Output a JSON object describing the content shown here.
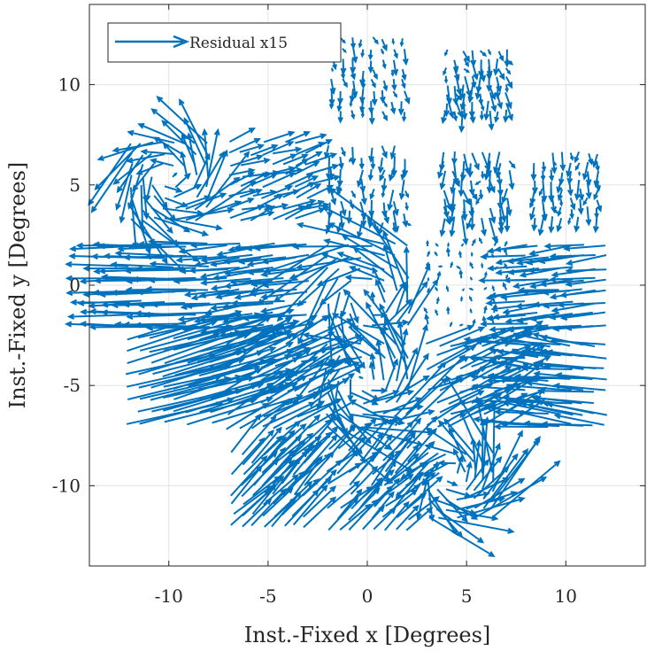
{
  "chart_data": {
    "type": "quiver",
    "xlabel": "Inst.-Fixed x [Degrees]",
    "ylabel": "Inst.-Fixed y [Degrees]",
    "xlim": [
      -14,
      14
    ],
    "ylim": [
      -14,
      14
    ],
    "xticks": [
      -10,
      -5,
      0,
      5,
      10
    ],
    "yticks": [
      -10,
      -5,
      0,
      5,
      10
    ],
    "xtick_labels": [
      "-10",
      "-5",
      "0",
      "5",
      "10"
    ],
    "ytick_labels": [
      "-10",
      "-5",
      "0",
      "5",
      "10"
    ],
    "grid": true,
    "legend": {
      "label": "Residual x15",
      "placement": "top-left"
    },
    "arrow_scale": 15,
    "series_color": "#0072BD",
    "tiles": [
      {
        "cx": -10,
        "cy": 5.2,
        "span": 3.8,
        "pattern": "swirl",
        "u": 0.01,
        "v": -0.005,
        "mag": 0.05
      },
      {
        "cx": -5,
        "cy": 5.2,
        "span": 3.8,
        "pattern": "uniform",
        "u": 0.09,
        "v": 0.03,
        "mag": 0.04
      },
      {
        "cx": 0,
        "cy": 5.0,
        "span": 3.8,
        "pattern": "vertical",
        "u": 0.0,
        "v": -0.04,
        "mag": 0.03
      },
      {
        "cx": 5.5,
        "cy": 5.0,
        "span": 3.2,
        "pattern": "vertical",
        "u": 0.005,
        "v": -0.05,
        "mag": 0.04
      },
      {
        "cx": 10,
        "cy": 5.0,
        "span": 3.2,
        "pattern": "vertical",
        "u": 0.0,
        "v": -0.04,
        "mag": 0.025
      },
      {
        "cx": 0,
        "cy": 10.5,
        "span": 3.6,
        "pattern": "vertical",
        "u": 0.005,
        "v": -0.03,
        "mag": 0.02
      },
      {
        "cx": 5.5,
        "cy": 10.2,
        "span": 3.0,
        "pattern": "vertical",
        "u": 0.005,
        "v": -0.04,
        "mag": 0.03
      },
      {
        "cx": -10,
        "cy": 0.0,
        "span": 4.0,
        "pattern": "uniform",
        "u": -0.2,
        "v": 0.0,
        "mag": 0.02
      },
      {
        "cx": -5,
        "cy": 0.0,
        "span": 4.0,
        "pattern": "uniform",
        "u": -0.16,
        "v": -0.02,
        "mag": 0.03
      },
      {
        "cx": 0,
        "cy": 0.0,
        "span": 4.0,
        "pattern": "swirl",
        "u": -0.08,
        "v": 0.0,
        "mag": 0.06
      },
      {
        "cx": 5,
        "cy": 0.0,
        "span": 4.0,
        "pattern": "vertical",
        "u": 0.0,
        "v": 0.015,
        "mag": 0.02
      },
      {
        "cx": 10,
        "cy": 0.0,
        "span": 4.0,
        "pattern": "uniform",
        "u": -0.14,
        "v": -0.015,
        "mag": 0.03
      },
      {
        "cx": -10,
        "cy": -4.8,
        "span": 4.2,
        "pattern": "uniform",
        "u": 0.3,
        "v": 0.08,
        "mag": 0.04
      },
      {
        "cx": -5,
        "cy": -5.0,
        "span": 4.2,
        "pattern": "uniform",
        "u": 0.16,
        "v": 0.08,
        "mag": 0.05
      },
      {
        "cx": 0,
        "cy": -5.0,
        "span": 4.0,
        "pattern": "swirl",
        "u": 0.03,
        "v": 0.02,
        "mag": 0.08
      },
      {
        "cx": 5,
        "cy": -5.0,
        "span": 4.0,
        "pattern": "uniform",
        "u": 0.14,
        "v": 0.06,
        "mag": 0.05
      },
      {
        "cx": 10,
        "cy": -5.0,
        "span": 4.0,
        "pattern": "uniform",
        "u": -0.18,
        "v": 0.02,
        "mag": 0.04
      },
      {
        "cx": -5,
        "cy": -10.2,
        "span": 3.6,
        "pattern": "uniform",
        "u": 0.11,
        "v": 0.11,
        "mag": 0.04
      },
      {
        "cx": 0,
        "cy": -10.2,
        "span": 4.0,
        "pattern": "uniform",
        "u": 0.09,
        "v": 0.09,
        "mag": 0.05
      },
      {
        "cx": 4.7,
        "cy": -10.0,
        "span": 3.2,
        "pattern": "swirl",
        "u": 0.05,
        "v": 0.05,
        "mag": 0.07
      }
    ]
  }
}
